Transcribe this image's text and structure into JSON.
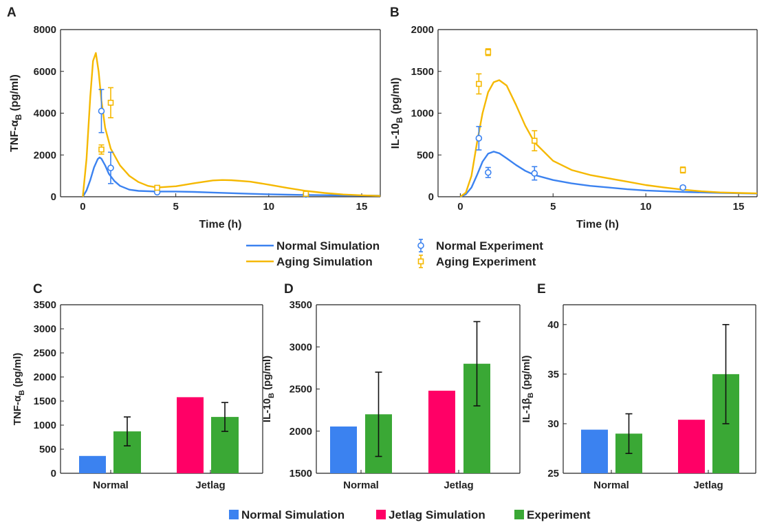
{
  "legend_top": {
    "normal_sim": "Normal Simulation",
    "aging_sim": "Aging Simulation",
    "normal_exp": "Normal Experiment",
    "aging_exp": "Aging Experiment"
  },
  "legend_bottom": {
    "normal_sim": "Normal Simulation",
    "jetlag_sim": "Jetlag Simulation",
    "experiment": "Experiment"
  },
  "colors": {
    "normal": "#3b82f0",
    "aging": "#f5b800",
    "jetlag": "#ff0066",
    "experiment": "#3aa835",
    "axis": "#222222"
  },
  "chart_data": [
    {
      "panel": "A",
      "type": "line",
      "xlabel": "Time (h)",
      "ylabel": "TNF-α",
      "ylabel_sub": "B",
      "ylabel_unit": " (pg/ml)",
      "xlim": [
        -1.2,
        16
      ],
      "ylim": [
        0,
        8000
      ],
      "xticks": [
        0,
        5,
        10,
        15
      ],
      "yticks": [
        0,
        2000,
        4000,
        6000,
        8000
      ],
      "series": [
        {
          "name": "Normal Simulation",
          "x": [
            0,
            0.2,
            0.4,
            0.6,
            0.8,
            0.9,
            1.0,
            1.2,
            1.4,
            1.7,
            2.0,
            2.5,
            3.0,
            4.0,
            5.0,
            6.0,
            7.0,
            8.0,
            9.0,
            10.0,
            11.0,
            12.0,
            13.0,
            14.0,
            15.0,
            16.0
          ],
          "y": [
            0,
            300,
            800,
            1400,
            1800,
            1880,
            1820,
            1500,
            1100,
            750,
            520,
            340,
            280,
            250,
            250,
            230,
            200,
            170,
            140,
            120,
            100,
            85,
            75,
            65,
            55,
            50
          ]
        },
        {
          "name": "Aging Simulation",
          "x": [
            0,
            0.2,
            0.4,
            0.55,
            0.7,
            0.85,
            1.0,
            1.2,
            1.5,
            2.0,
            2.5,
            3.0,
            3.5,
            4.0,
            5.0,
            6.0,
            7.0,
            7.5,
            8.0,
            9.0,
            10.0,
            11.0,
            12.0,
            13.0,
            14.0,
            15.0,
            16.0
          ],
          "y": [
            0,
            1800,
            4800,
            6500,
            6880,
            6000,
            4600,
            3300,
            2300,
            1500,
            1000,
            700,
            520,
            440,
            500,
            650,
            780,
            800,
            790,
            720,
            580,
            420,
            280,
            180,
            110,
            70,
            40
          ]
        }
      ],
      "experiment": [
        {
          "name": "Normal Experiment",
          "x": [
            1,
            1.5,
            4,
            12
          ],
          "y": [
            4100,
            1380,
            220,
            110
          ],
          "err": [
            1030,
            750,
            60,
            30
          ]
        },
        {
          "name": "Aging Experiment",
          "x": [
            1,
            1.5,
            4,
            12
          ],
          "y": [
            2260,
            4500,
            430,
            140
          ],
          "err": [
            220,
            720,
            100,
            40
          ]
        }
      ]
    },
    {
      "panel": "B",
      "type": "line",
      "xlabel": "Time (h)",
      "ylabel": "IL-10",
      "ylabel_sub": "B",
      "ylabel_unit": " (pg/ml)",
      "xlim": [
        -1.2,
        16
      ],
      "ylim": [
        0,
        2000
      ],
      "xticks": [
        0,
        5,
        10,
        15
      ],
      "yticks": [
        0,
        500,
        1000,
        1500,
        2000
      ],
      "series": [
        {
          "name": "Normal Simulation",
          "x": [
            0,
            0.3,
            0.6,
            0.9,
            1.2,
            1.5,
            1.8,
            2.1,
            2.5,
            3.0,
            3.5,
            4.0,
            5.0,
            6.0,
            7.0,
            8.0,
            9.0,
            10.0,
            11.0,
            12.0,
            13.0,
            14.0,
            15.0,
            16.0
          ],
          "y": [
            0,
            30,
            110,
            260,
            420,
            515,
            540,
            520,
            460,
            380,
            310,
            260,
            200,
            160,
            130,
            110,
            90,
            75,
            65,
            58,
            52,
            46,
            42,
            38
          ]
        },
        {
          "name": "Aging Simulation",
          "x": [
            0,
            0.3,
            0.6,
            0.9,
            1.2,
            1.5,
            1.8,
            2.1,
            2.5,
            3.0,
            3.5,
            4.0,
            5.0,
            6.0,
            7.0,
            8.0,
            9.0,
            10.0,
            11.0,
            12.0,
            13.0,
            14.0,
            15.0,
            16.0
          ],
          "y": [
            0,
            50,
            250,
            650,
            1000,
            1250,
            1370,
            1395,
            1330,
            1100,
            850,
            650,
            430,
            320,
            260,
            220,
            180,
            140,
            110,
            85,
            65,
            52,
            45,
            40
          ]
        }
      ],
      "experiment": [
        {
          "name": "Normal Experiment",
          "x": [
            1,
            1.5,
            4,
            12
          ],
          "y": [
            700,
            290,
            280,
            110
          ],
          "err": [
            140,
            60,
            80,
            20
          ]
        },
        {
          "name": "Aging Experiment",
          "x": [
            1,
            1.5,
            4,
            12
          ],
          "y": [
            1350,
            1730,
            670,
            320
          ],
          "err": [
            120,
            40,
            120,
            35
          ]
        }
      ]
    },
    {
      "panel": "C",
      "type": "bar",
      "categories": [
        "Normal",
        "Jetlag"
      ],
      "ylabel": "TNF-α",
      "ylabel_sub": "B",
      "ylabel_unit": " (pg/ml)",
      "ylim": [
        0,
        3500
      ],
      "yticks": [
        0,
        500,
        1000,
        1500,
        2000,
        2500,
        3000,
        3500
      ],
      "simulation": [
        360,
        1580
      ],
      "experiment": [
        870,
        1170
      ],
      "experiment_err": [
        300,
        300
      ]
    },
    {
      "panel": "D",
      "type": "bar",
      "categories": [
        "Normal",
        "Jetlag"
      ],
      "ylabel": "IL-10",
      "ylabel_sub": "B",
      "ylabel_unit": " (pg/ml)",
      "ylim": [
        1500,
        3500
      ],
      "yticks": [
        1500,
        2000,
        2500,
        3000,
        3500
      ],
      "simulation": [
        2055,
        2480
      ],
      "experiment": [
        2200,
        2800
      ],
      "experiment_err": [
        500,
        500
      ]
    },
    {
      "panel": "E",
      "type": "bar",
      "categories": [
        "Normal",
        "Jetlag"
      ],
      "ylabel": "IL-1β",
      "ylabel_sub": "B",
      "ylabel_unit": " (pg/ml)",
      "ylim": [
        25,
        42
      ],
      "yticks": [
        25,
        30,
        35,
        40
      ],
      "simulation": [
        29.4,
        30.4
      ],
      "experiment": [
        29,
        35
      ],
      "experiment_err": [
        2,
        5
      ]
    }
  ]
}
